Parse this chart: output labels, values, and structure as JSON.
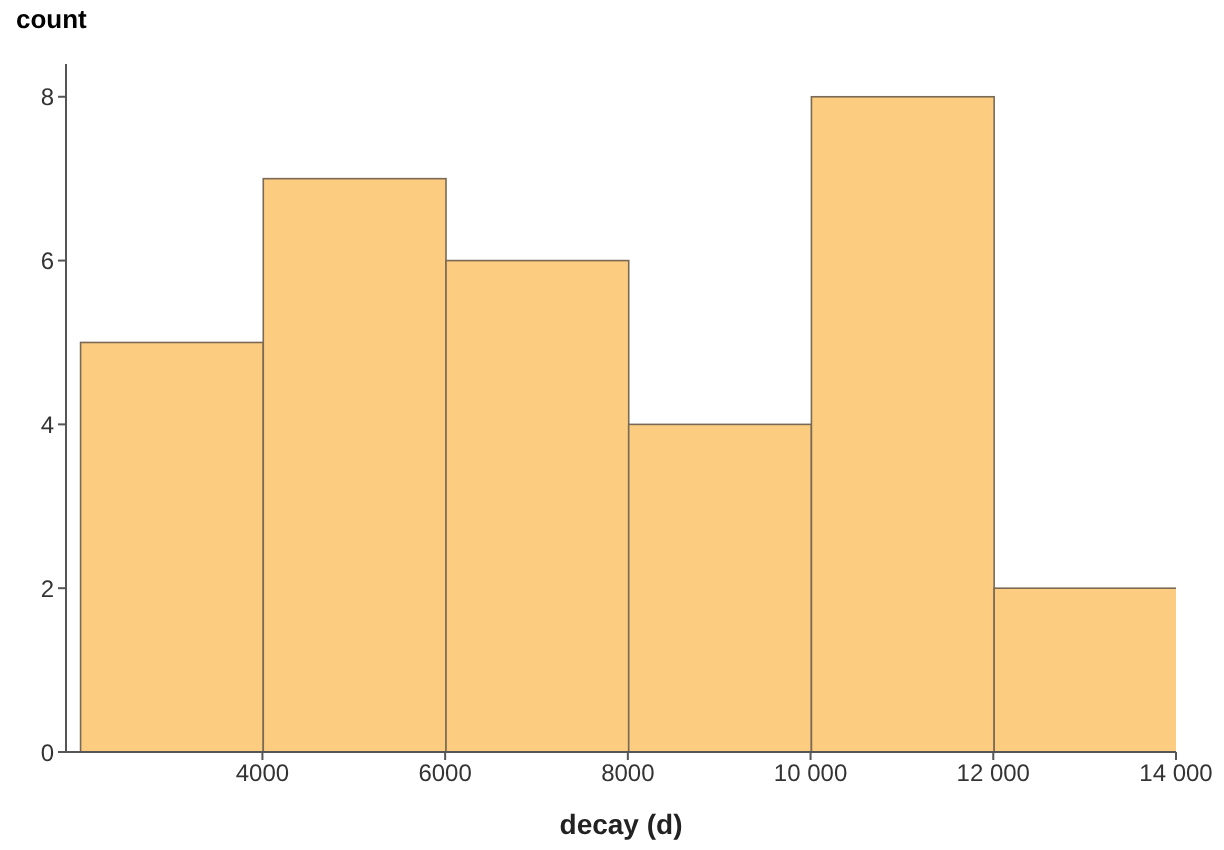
{
  "chart_data": {
    "type": "histogram",
    "xlabel": "decay (d)",
    "ylabel": "count",
    "bins": [
      2000,
      4000,
      6000,
      8000,
      10000,
      12000,
      14000
    ],
    "values": [
      5,
      7,
      6,
      4,
      8,
      2
    ],
    "color": "#fccd80",
    "xlim": [
      1850,
      14000
    ],
    "xticks": [
      4000,
      6000,
      8000,
      {
        "value": 10000,
        "label": "10 000"
      },
      {
        "value": 12000,
        "label": "12 000"
      },
      {
        "value": 14000,
        "label": "14 000"
      }
    ],
    "ylim": [
      0,
      8.4
    ],
    "yticks": [
      0,
      2,
      4,
      6,
      8
    ],
    "grid": false,
    "legend": false
  }
}
